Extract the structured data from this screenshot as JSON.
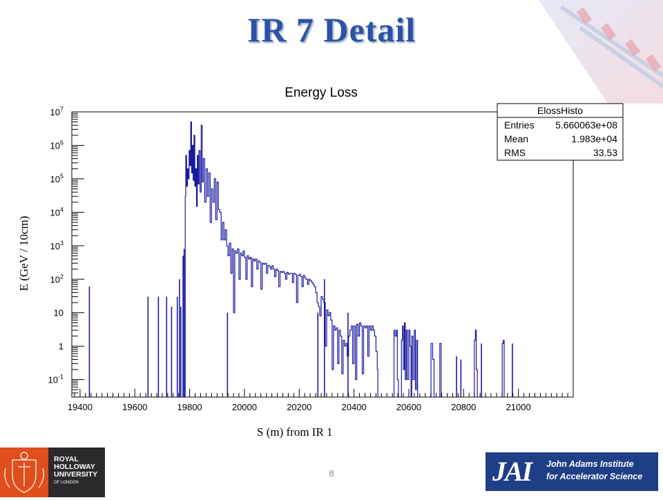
{
  "slide": {
    "title": "IR 7 Detail",
    "page_number": "8"
  },
  "logos": {
    "left_lines": [
      "ROYAL",
      "HOLLOWAY",
      "UNIVERSITY",
      "OF LONDON"
    ],
    "right_mark": "JAI",
    "right_lines": [
      "John Adams Institute",
      "for Accelerator Science"
    ]
  },
  "colors": {
    "title": "#2b52a6",
    "histogram": "#1a1aa0",
    "rhul_orange": "#e04e1e",
    "jai_blue": "#1e3f86"
  },
  "chart_data": {
    "type": "line",
    "title": "Energy Loss",
    "xlabel": "S (m) from IR 1",
    "ylabel": "E (GeV / 10cm)",
    "xlim": [
      19370,
      21200
    ],
    "ylim": [
      0.03,
      10000000
    ],
    "y_scale": "log",
    "x_ticks": [
      19400,
      19600,
      19800,
      20000,
      20200,
      20400,
      20600,
      20800,
      21000
    ],
    "y_ticks": [
      {
        "value": 0.1,
        "label": "10",
        "exp": "-1"
      },
      {
        "value": 1,
        "label": "1",
        "exp": ""
      },
      {
        "value": 10,
        "label": "10",
        "exp": ""
      },
      {
        "value": 100,
        "label": "10",
        "exp": "2"
      },
      {
        "value": 1000,
        "label": "10",
        "exp": "3"
      },
      {
        "value": 10000,
        "label": "10",
        "exp": "4"
      },
      {
        "value": 100000,
        "label": "10",
        "exp": "5"
      },
      {
        "value": 1000000,
        "label": "10",
        "exp": "6"
      },
      {
        "value": 10000000,
        "label": "10",
        "exp": "7"
      }
    ],
    "legend_placement": "top-right",
    "stats": {
      "name": "ElossHisto",
      "rows": [
        {
          "label": "Entries",
          "value": "5.660063e+08"
        },
        {
          "label": "Mean",
          "value": "1.983e+04"
        },
        {
          "label": "RMS",
          "value": "33.53"
        }
      ]
    },
    "series": [
      {
        "spikes": [
          [
            19434,
            60
          ],
          [
            19648,
            30
          ],
          [
            19686,
            30
          ],
          [
            19716,
            30
          ],
          [
            19734,
            15
          ],
          [
            19755,
            30
          ],
          [
            19763,
            100
          ],
          [
            19768,
            15
          ],
          [
            19776,
            500
          ],
          [
            19780,
            800
          ],
          [
            19938,
            10
          ],
          [
            20268,
            10
          ],
          [
            20292,
            100
          ],
          [
            20378,
            10
          ],
          [
            20774,
            0.5
          ],
          [
            20790,
            0.4
          ],
          [
            20865,
            1.2
          ],
          [
            20978,
            1.2
          ]
        ],
        "segments": [
          [
            [
              19784,
              30000
            ],
            [
              19786,
              500000
            ],
            [
              19789,
              60000
            ],
            [
              19792,
              200000
            ],
            [
              19795,
              100000
            ],
            [
              19798,
              700000
            ],
            [
              19801,
              250000
            ],
            [
              19804,
              5000000
            ],
            [
              19807,
              150000
            ],
            [
              19810,
              1000000
            ],
            [
              19813,
              90000
            ],
            [
              19816,
              2000000
            ],
            [
              19819,
              60000
            ],
            [
              19822,
              200000
            ],
            [
              19825,
              15000
            ],
            [
              19828,
              500000
            ],
            [
              19831,
              70000
            ],
            [
              19834,
              700000
            ],
            [
              19838,
              40000
            ],
            [
              19842,
              4000000
            ],
            [
              19846,
              80000
            ],
            [
              19850,
              400000
            ],
            [
              19855,
              20000
            ],
            [
              19860,
              200000
            ],
            [
              19865,
              30000
            ],
            [
              19870,
              150000
            ],
            [
              19875,
              5000
            ],
            [
              19880,
              50000
            ],
            [
              19885,
              20000
            ],
            [
              19890,
              100000
            ],
            [
              19895,
              6000
            ],
            [
              19900,
              80000
            ],
            [
              19905,
              12000
            ],
            [
              19910,
              10000
            ],
            [
              19915,
              1500
            ],
            [
              19920,
              5000
            ],
            [
              19925,
              1500
            ],
            [
              19930,
              3000
            ],
            [
              19935,
              1000
            ],
            [
              19940,
              500
            ],
            [
              19945,
              1200
            ],
            [
              19950,
              150
            ],
            [
              19955,
              800
            ],
            [
              19960,
              10
            ],
            [
              19965,
              700
            ],
            [
              19970,
              600
            ],
            [
              19975,
              800
            ],
            [
              19980,
              100
            ],
            [
              19985,
              600
            ],
            [
              19990,
              500
            ],
            [
              19995,
              700
            ],
            [
              20000,
              450
            ],
            [
              20005,
              100
            ],
            [
              20010,
              500
            ],
            [
              20015,
              400
            ],
            [
              20020,
              450
            ],
            [
              20025,
              60
            ],
            [
              20030,
              400
            ],
            [
              20035,
              350
            ],
            [
              20040,
              400
            ],
            [
              20045,
              200
            ],
            [
              20050,
              350
            ],
            [
              20055,
              320
            ],
            [
              20060,
              50
            ],
            [
              20065,
              300
            ],
            [
              20070,
              280
            ],
            [
              20075,
              300
            ],
            [
              20080,
              150
            ],
            [
              20085,
              260
            ],
            [
              20090,
              240
            ],
            [
              20095,
              200
            ],
            [
              20100,
              250
            ],
            [
              20105,
              200
            ],
            [
              20110,
              120
            ],
            [
              20115,
              200
            ],
            [
              20120,
              180
            ],
            [
              20125,
              60
            ],
            [
              20130,
              170
            ],
            [
              20135,
              160
            ],
            [
              20140,
              170
            ],
            [
              20145,
              150
            ],
            [
              20150,
              100
            ],
            [
              20155,
              160
            ],
            [
              20160,
              140
            ],
            [
              20165,
              150
            ],
            [
              20170,
              150
            ],
            [
              20175,
              80
            ],
            [
              20180,
              150
            ],
            [
              20185,
              140
            ],
            [
              20190,
              20
            ],
            [
              20195,
              130
            ],
            [
              20200,
              140
            ],
            [
              20205,
              120
            ],
            [
              20210,
              60
            ],
            [
              20215,
              130
            ],
            [
              20220,
              110
            ],
            [
              20225,
              100
            ],
            [
              20230,
              70
            ],
            [
              20235,
              100
            ],
            [
              20240,
              90
            ],
            [
              20245,
              80
            ],
            [
              20250,
              70
            ],
            [
              20255,
              60
            ],
            [
              20260,
              40
            ],
            [
              20265,
              20
            ],
            [
              20270,
              15
            ],
            [
              20275,
              8
            ],
            [
              20280,
              30
            ],
            [
              20285,
              25
            ],
            [
              20290,
              20
            ],
            [
              20295,
              1
            ],
            [
              20300,
              12
            ],
            [
              20305,
              8
            ],
            [
              20310,
              10
            ],
            [
              20315,
              6
            ],
            [
              20320,
              0.2
            ],
            [
              20325,
              4
            ],
            [
              20330,
              3
            ],
            [
              20335,
              3.5
            ],
            [
              20340,
              0.3
            ],
            [
              20345,
              3
            ],
            [
              20350,
              2
            ],
            [
              20355,
              0.15
            ],
            [
              20360,
              1.5
            ],
            [
              20365,
              1
            ],
            [
              20370,
              1.2
            ],
            [
              20375,
              0.5
            ],
            [
              20380,
              2
            ],
            [
              20385,
              3
            ],
            [
              20390,
              4
            ],
            [
              20395,
              0.3
            ],
            [
              20400,
              4
            ],
            [
              20405,
              0.1
            ],
            [
              20410,
              4.5
            ],
            [
              20415,
              2
            ],
            [
              20420,
              5
            ],
            [
              20425,
              4
            ],
            [
              20430,
              0.15
            ],
            [
              20435,
              4
            ],
            [
              20440,
              3.5
            ],
            [
              20445,
              4
            ],
            [
              20450,
              0.5
            ],
            [
              20455,
              4
            ],
            [
              20460,
              3
            ],
            [
              20465,
              4
            ],
            [
              20470,
              3
            ],
            [
              20475,
              2
            ],
            [
              20480,
              0.7
            ],
            [
              20485,
              0.2
            ],
            [
              20487,
              0.03
            ]
          ],
          [
            [
              20545,
              0.03
            ],
            [
              20546,
              3
            ],
            [
              20550,
              2
            ],
            [
              20555,
              3
            ],
            [
              20558,
              0.1
            ],
            [
              20562,
              0.03
            ]
          ],
          [
            [
              20572,
              0.03
            ],
            [
              20573,
              1.5
            ],
            [
              20577,
              4
            ],
            [
              20580,
              0.2
            ],
            [
              20584,
              5
            ],
            [
              20587,
              0.1
            ],
            [
              20591,
              3
            ],
            [
              20595,
              0.1
            ],
            [
              20600,
              3
            ],
            [
              20604,
              1
            ],
            [
              20608,
              0.03
            ]
          ],
          [
            [
              20610,
              0.03
            ],
            [
              20611,
              2
            ],
            [
              20615,
              0.1
            ],
            [
              20620,
              3
            ],
            [
              20624,
              0.05
            ],
            [
              20628,
              1.5
            ],
            [
              20632,
              0.03
            ]
          ],
          [
            [
              20680,
              0.03
            ],
            [
              20681,
              1.2
            ],
            [
              20687,
              0.4
            ],
            [
              20692,
              0.03
            ]
          ],
          [
            [
              20712,
              0.03
            ],
            [
              20713,
              1.2
            ],
            [
              20718,
              0.03
            ]
          ],
          [
            [
              20838,
              0.03
            ],
            [
              20839,
              1.5
            ],
            [
              20843,
              3
            ],
            [
              20846,
              0.2
            ],
            [
              20850,
              0.03
            ]
          ],
          [
            [
              20940,
              0.03
            ],
            [
              20941,
              1.2
            ],
            [
              20945,
              1.5
            ],
            [
              20948,
              0.03
            ]
          ]
        ]
      }
    ]
  }
}
